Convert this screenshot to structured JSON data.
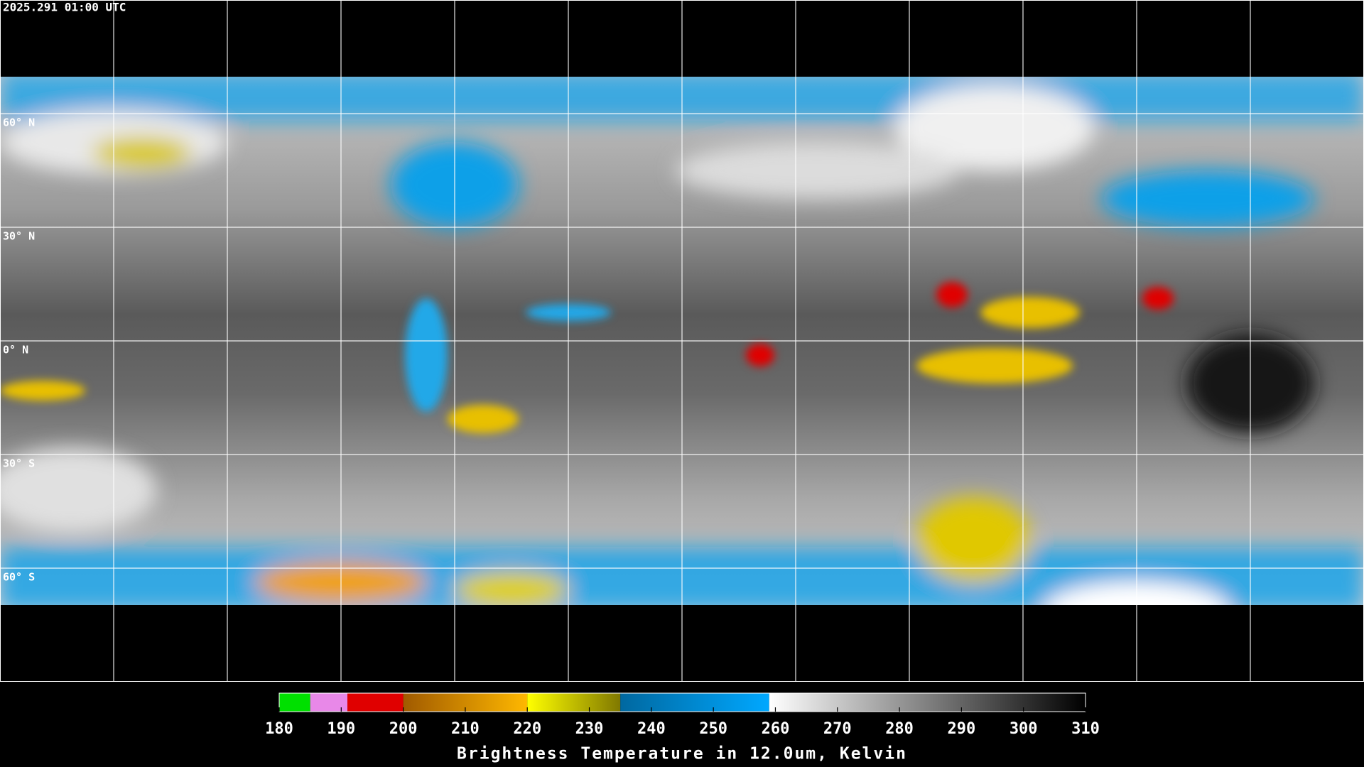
{
  "header": {
    "title": "2025.291 01:00 UTC"
  },
  "map": {
    "latitude_labels": [
      "60° N",
      "30° N",
      "0° N",
      "30° S",
      "60° S"
    ]
  },
  "colorbar": {
    "title": "Brightness Temperature in 12.0um, Kelvin",
    "range": [
      180,
      310
    ],
    "ticks": [
      180,
      190,
      200,
      210,
      220,
      230,
      240,
      250,
      260,
      270,
      280,
      290,
      300,
      310
    ],
    "segments": [
      {
        "from": 180,
        "to": 185,
        "colors": [
          "#00e000",
          "#00e000"
        ]
      },
      {
        "from": 185,
        "to": 191,
        "colors": [
          "#e888e8",
          "#e888e8"
        ]
      },
      {
        "from": 191,
        "to": 200,
        "colors": [
          "#e00000",
          "#e00000"
        ]
      },
      {
        "from": 200,
        "to": 220,
        "colors": [
          "#a05a00",
          "#ffb800"
        ]
      },
      {
        "from": 220,
        "to": 235,
        "colors": [
          "#ffff00",
          "#807800"
        ]
      },
      {
        "from": 235,
        "to": 259,
        "colors": [
          "#0068a0",
          "#00a8ff"
        ]
      },
      {
        "from": 259,
        "to": 310,
        "colors": [
          "#ffffff",
          "#000000"
        ]
      }
    ]
  }
}
